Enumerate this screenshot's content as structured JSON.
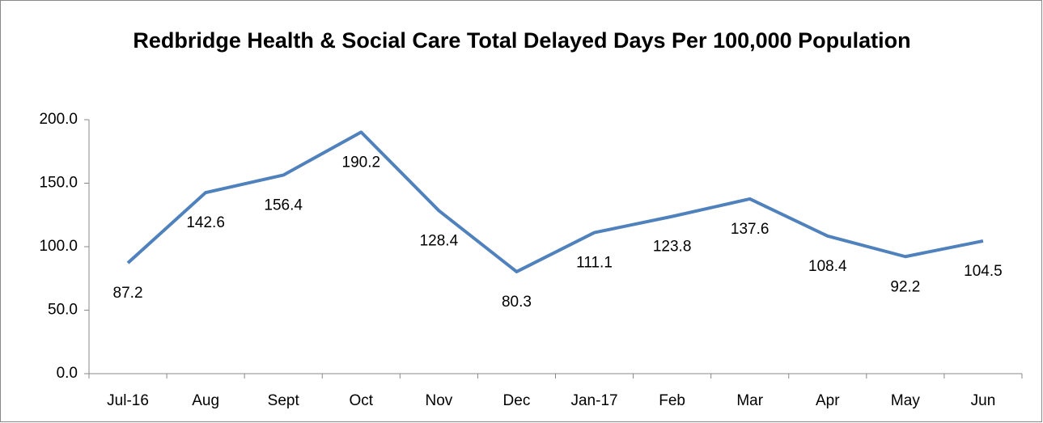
{
  "chart_data": {
    "type": "line",
    "title": "Redbridge Health & Social Care Total Delayed Days Per 100,000 Population",
    "categories": [
      "Jul-16",
      "Aug",
      "Sept",
      "Oct",
      "Nov",
      "Dec",
      "Jan-17",
      "Feb",
      "Mar",
      "Apr",
      "May",
      "Jun"
    ],
    "series": [
      {
        "name": "Total Delayed Days Per 100,000 Population",
        "color": "#4f81bd",
        "values": [
          87.2,
          142.6,
          156.4,
          190.2,
          128.4,
          80.3,
          111.1,
          123.8,
          137.6,
          108.4,
          92.2,
          104.5
        ]
      }
    ],
    "ylim": [
      0,
      200
    ],
    "yticks": [
      {
        "value": 0,
        "label": "0.0"
      },
      {
        "value": 50,
        "label": "50.0"
      },
      {
        "value": 100,
        "label": "100.0"
      },
      {
        "value": 150,
        "label": "150.0"
      },
      {
        "value": 200,
        "label": "200.0"
      }
    ],
    "grid": false
  }
}
